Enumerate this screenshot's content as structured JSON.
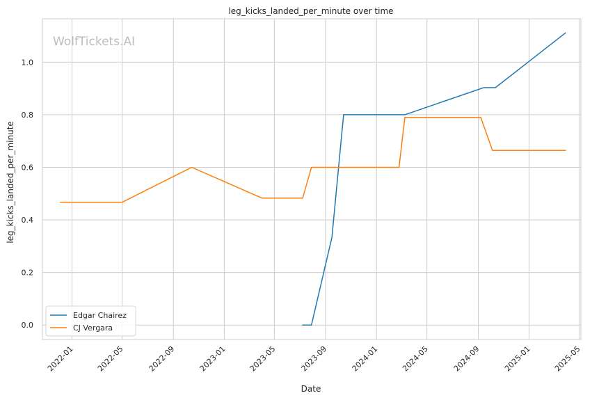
{
  "chart_data": {
    "type": "line",
    "title": "leg_kicks_landed_per_minute over time",
    "xlabel": "Date",
    "ylabel": "leg_kicks_landed_per_minute",
    "watermark": "WolfTickets.AI",
    "xlim": [
      "2021-10-22",
      "2025-05-05"
    ],
    "ylim": [
      -0.055,
      1.165
    ],
    "x_ticks": [
      "2022-01",
      "2022-05",
      "2022-09",
      "2023-01",
      "2023-05",
      "2023-09",
      "2024-01",
      "2024-05",
      "2024-09",
      "2025-01",
      "2025-05"
    ],
    "y_ticks": [
      "0.0",
      "0.2",
      "0.4",
      "0.6",
      "0.8",
      "1.0"
    ],
    "grid": true,
    "legend_position": "lower-left",
    "series": [
      {
        "name": "Edgar Chairez",
        "color": "#1f77b4",
        "x": [
          "2023-07-08",
          "2023-07-29",
          "2023-09-16",
          "2023-10-14",
          "2024-03-09",
          "2024-09-14",
          "2024-10-12",
          "2025-03-29"
        ],
        "y": [
          0.0,
          0.0,
          0.333,
          0.8,
          0.8,
          0.903,
          0.903,
          1.111
        ]
      },
      {
        "name": "CJ Vergara",
        "color": "#ff7f0e",
        "x": [
          "2021-12-04",
          "2022-05-01",
          "2022-10-15",
          "2023-04-01",
          "2023-07-08",
          "2023-07-29",
          "2024-02-24",
          "2024-03-09",
          "2024-09-07",
          "2024-10-05",
          "2025-03-29"
        ],
        "y": [
          0.467,
          0.467,
          0.6,
          0.483,
          0.483,
          0.6,
          0.6,
          0.79,
          0.79,
          0.664,
          0.664
        ]
      }
    ]
  }
}
